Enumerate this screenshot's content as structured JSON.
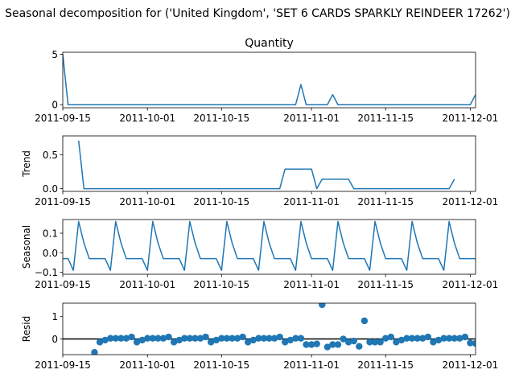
{
  "suptitle": "Seasonal decomposition for ('United Kingdom', 'SET 6 CARDS SPARKLY REINDEER 17262')",
  "chart_data": [
    {
      "type": "line",
      "title": "Quantity",
      "ylabel": "",
      "xlim": [
        "2011-09-15",
        "2011-12-02"
      ],
      "ylim": [
        -0.3,
        5.2
      ],
      "yticks": [
        0,
        5
      ],
      "xticks": [
        "2011-09-15",
        "2011-10-01",
        "2011-10-15",
        "2011-11-01",
        "2011-11-15",
        "2011-12-01"
      ],
      "color": "#1f77b4",
      "grid": false,
      "series": [
        {
          "x": [
            "2011-09-15",
            "2011-09-16",
            "2011-10-29",
            "2011-10-30",
            "2011-10-31",
            "2011-11-04",
            "2011-11-05",
            "2011-11-06",
            "2011-12-01",
            "2011-12-02"
          ],
          "y": [
            5,
            0,
            0,
            2,
            0,
            0,
            1,
            0,
            0,
            1
          ]
        }
      ]
    },
    {
      "type": "line",
      "title": "",
      "ylabel": "Trend",
      "xlim": [
        "2011-09-15",
        "2011-12-02"
      ],
      "ylim": [
        -0.04,
        0.78
      ],
      "yticks": [
        0,
        0.5
      ],
      "ytick_labels": [
        "0.0",
        "0.5"
      ],
      "xticks": [
        "2011-09-15",
        "2011-10-01",
        "2011-10-15",
        "2011-11-01",
        "2011-11-15",
        "2011-12-01"
      ],
      "color": "#1f77b4",
      "grid": false,
      "series": [
        {
          "x": [
            "2011-09-18",
            "2011-09-19",
            "2011-10-26",
            "2011-10-27",
            "2011-11-01",
            "2011-11-02",
            "2011-11-03",
            "2011-11-08",
            "2011-11-09",
            "2011-11-27",
            "2011-11-28"
          ],
          "y": [
            0.71,
            0,
            0,
            0.29,
            0.29,
            0,
            0.14,
            0.14,
            0,
            0,
            0.14
          ]
        }
      ]
    },
    {
      "type": "line",
      "title": "",
      "ylabel": "Seasonal",
      "xlim": [
        "2011-09-15",
        "2011-12-02"
      ],
      "ylim": [
        -0.11,
        0.17
      ],
      "yticks": [
        -0.1,
        0.0,
        0.1
      ],
      "ytick_labels": [
        "−0.1",
        "0.0",
        "0.1"
      ],
      "xticks": [
        "2011-09-15",
        "2011-10-01",
        "2011-10-15",
        "2011-11-01",
        "2011-11-15",
        "2011-12-01"
      ],
      "color": "#1f77b4",
      "grid": false,
      "series": [
        {
          "start": "2011-09-15",
          "period": [
            -0.03,
            -0.03,
            -0.09,
            0.16,
            0.05,
            -0.03,
            -0.03
          ],
          "pattern_offset": 0,
          "count": 79
        }
      ]
    },
    {
      "type": "scatter",
      "title": "",
      "ylabel": "Resid",
      "xlim": [
        "2011-09-15",
        "2011-12-02"
      ],
      "ylim": [
        -0.7,
        1.6
      ],
      "yticks": [
        0,
        1
      ],
      "xticks": [
        "2011-09-15",
        "2011-10-01",
        "2011-10-15",
        "2011-11-01",
        "2011-11-15",
        "2011-12-01"
      ],
      "color": "#1f77b4",
      "baseline": 0,
      "grid": false,
      "points": [
        {
          "x": "2011-09-21",
          "y": -0.6
        },
        {
          "x": "2011-09-22",
          "y": -0.14
        },
        {
          "x": "2011-09-23",
          "y": -0.05
        },
        {
          "x": "2011-09-24",
          "y": 0.03
        },
        {
          "x": "2011-09-25",
          "y": 0.03
        },
        {
          "x": "2011-09-26",
          "y": 0.03
        },
        {
          "x": "2011-09-27",
          "y": 0.03
        },
        {
          "x": "2011-09-28",
          "y": 0.09
        },
        {
          "x": "2011-09-29",
          "y": -0.14
        },
        {
          "x": "2011-09-30",
          "y": -0.05
        },
        {
          "x": "2011-10-01",
          "y": 0.03
        },
        {
          "x": "2011-10-02",
          "y": 0.03
        },
        {
          "x": "2011-10-03",
          "y": 0.03
        },
        {
          "x": "2011-10-04",
          "y": 0.03
        },
        {
          "x": "2011-10-05",
          "y": 0.09
        },
        {
          "x": "2011-10-06",
          "y": -0.14
        },
        {
          "x": "2011-10-07",
          "y": -0.05
        },
        {
          "x": "2011-10-08",
          "y": 0.03
        },
        {
          "x": "2011-10-09",
          "y": 0.03
        },
        {
          "x": "2011-10-10",
          "y": 0.03
        },
        {
          "x": "2011-10-11",
          "y": 0.03
        },
        {
          "x": "2011-10-12",
          "y": 0.09
        },
        {
          "x": "2011-10-13",
          "y": -0.14
        },
        {
          "x": "2011-10-14",
          "y": -0.05
        },
        {
          "x": "2011-10-15",
          "y": 0.03
        },
        {
          "x": "2011-10-16",
          "y": 0.03
        },
        {
          "x": "2011-10-17",
          "y": 0.03
        },
        {
          "x": "2011-10-18",
          "y": 0.03
        },
        {
          "x": "2011-10-19",
          "y": 0.09
        },
        {
          "x": "2011-10-20",
          "y": -0.14
        },
        {
          "x": "2011-10-21",
          "y": -0.05
        },
        {
          "x": "2011-10-22",
          "y": 0.03
        },
        {
          "x": "2011-10-23",
          "y": 0.03
        },
        {
          "x": "2011-10-24",
          "y": 0.03
        },
        {
          "x": "2011-10-25",
          "y": 0.03
        },
        {
          "x": "2011-10-26",
          "y": 0.09
        },
        {
          "x": "2011-10-27",
          "y": -0.14
        },
        {
          "x": "2011-10-28",
          "y": -0.05
        },
        {
          "x": "2011-10-29",
          "y": 0.03
        },
        {
          "x": "2011-10-30",
          "y": 0.03
        },
        {
          "x": "2011-10-31",
          "y": -0.25
        },
        {
          "x": "2011-11-01",
          "y": -0.25
        },
        {
          "x": "2011-11-02",
          "y": -0.22
        },
        {
          "x": "2011-11-03",
          "y": 1.53
        },
        {
          "x": "2011-11-04",
          "y": -0.36
        },
        {
          "x": "2011-11-05",
          "y": -0.25
        },
        {
          "x": "2011-11-06",
          "y": -0.25
        },
        {
          "x": "2011-11-07",
          "y": 0.0
        },
        {
          "x": "2011-11-08",
          "y": -0.14
        },
        {
          "x": "2011-11-09",
          "y": -0.09
        },
        {
          "x": "2011-11-10",
          "y": -0.33
        },
        {
          "x": "2011-11-11",
          "y": 0.81
        },
        {
          "x": "2011-11-12",
          "y": -0.14
        },
        {
          "x": "2011-11-13",
          "y": -0.14
        },
        {
          "x": "2011-11-14",
          "y": -0.14
        },
        {
          "x": "2011-11-15",
          "y": 0.03
        },
        {
          "x": "2011-11-16",
          "y": 0.09
        },
        {
          "x": "2011-11-17",
          "y": -0.14
        },
        {
          "x": "2011-11-18",
          "y": -0.05
        },
        {
          "x": "2011-11-19",
          "y": 0.03
        },
        {
          "x": "2011-11-20",
          "y": 0.03
        },
        {
          "x": "2011-11-21",
          "y": 0.03
        },
        {
          "x": "2011-11-22",
          "y": 0.03
        },
        {
          "x": "2011-11-23",
          "y": 0.09
        },
        {
          "x": "2011-11-24",
          "y": -0.14
        },
        {
          "x": "2011-11-25",
          "y": -0.05
        },
        {
          "x": "2011-11-26",
          "y": 0.03
        },
        {
          "x": "2011-11-27",
          "y": 0.03
        },
        {
          "x": "2011-11-28",
          "y": 0.03
        },
        {
          "x": "2011-11-29",
          "y": 0.03
        },
        {
          "x": "2011-11-30",
          "y": 0.09
        },
        {
          "x": "2011-12-01",
          "y": -0.18
        },
        {
          "x": "2011-12-02",
          "y": -0.2
        }
      ]
    }
  ]
}
